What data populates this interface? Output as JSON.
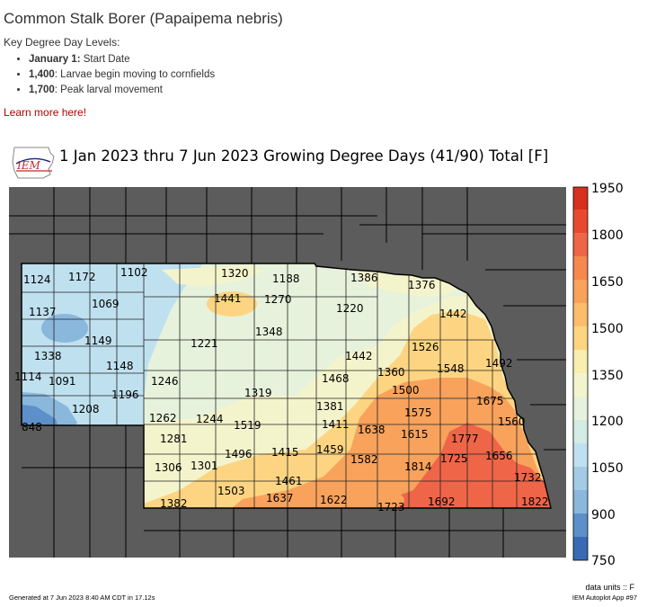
{
  "header": {
    "title": "Common Stalk Borer (Papaipema nebris)",
    "subtitle": "Key Degree Day Levels:",
    "levels": [
      {
        "value": "January 1:",
        "text": " Start Date",
        "bold": true
      },
      {
        "value": "1,400",
        "text": ": Larvae begin moving to cornfields",
        "bold": true
      },
      {
        "value": "1,700",
        "text": ": Peak larval movement",
        "bold": true
      }
    ],
    "learn_more": "Learn more here!"
  },
  "map": {
    "title": "1 Jan 2023 thru 7 Jun 2023 Growing Degree Days (41/90) Total [F]",
    "logo_text": "IEM",
    "units_label": "data units :: F",
    "colorbar": {
      "ticks": [
        "1950",
        "1800",
        "1650",
        "1500",
        "1350",
        "1200",
        "1050",
        "900",
        "750"
      ],
      "colors": [
        "#d7301f",
        "#ef6548",
        "#f9a25b",
        "#fdd582",
        "#f4f4cc",
        "#e6f2db",
        "#bfe0ef",
        "#8ab7dc",
        "#5d8fc9",
        "#3a6ab3"
      ]
    },
    "station_labels": [
      {
        "v": "1124"
      },
      {
        "v": "1172"
      },
      {
        "v": "1102"
      },
      {
        "v": "1320"
      },
      {
        "v": "1188"
      },
      {
        "v": "1386"
      },
      {
        "v": "1376"
      },
      {
        "v": "1441"
      },
      {
        "v": "1270"
      },
      {
        "v": "1137"
      },
      {
        "v": "1069"
      },
      {
        "v": "1220"
      },
      {
        "v": "1442"
      },
      {
        "v": "1348"
      },
      {
        "v": "1149"
      },
      {
        "v": "1221"
      },
      {
        "v": "1526"
      },
      {
        "v": "1338"
      },
      {
        "v": "1442"
      },
      {
        "v": "1148"
      },
      {
        "v": "1492"
      },
      {
        "v": "1548"
      },
      {
        "v": "1468"
      },
      {
        "v": "1360"
      },
      {
        "v": "1114"
      },
      {
        "v": "1091"
      },
      {
        "v": "1246"
      },
      {
        "v": "1500"
      },
      {
        "v": "1196"
      },
      {
        "v": "1319"
      },
      {
        "v": "1675"
      },
      {
        "v": "1208"
      },
      {
        "v": "1381"
      },
      {
        "v": "1575"
      },
      {
        "v": "1262"
      },
      {
        "v": "1244"
      },
      {
        "v": "1519"
      },
      {
        "v": "1411"
      },
      {
        "v": "1638"
      },
      {
        "v": "1560"
      },
      {
        "v": "848"
      },
      {
        "v": "1615"
      },
      {
        "v": "1777"
      },
      {
        "v": "1281"
      },
      {
        "v": "1496"
      },
      {
        "v": "1415"
      },
      {
        "v": "1459"
      },
      {
        "v": "1582"
      },
      {
        "v": "1725"
      },
      {
        "v": "1656"
      },
      {
        "v": "1306"
      },
      {
        "v": "1301"
      },
      {
        "v": "1814"
      },
      {
        "v": "1732"
      },
      {
        "v": "1461"
      },
      {
        "v": "1503"
      },
      {
        "v": "1637"
      },
      {
        "v": "1622"
      },
      {
        "v": "1692"
      },
      {
        "v": "1822"
      },
      {
        "v": "1382"
      },
      {
        "v": "1723"
      }
    ]
  },
  "footer": {
    "generated": "Generated at 7 Jun 2023 8:40 AM CDT in 17.12s",
    "app": "IEM Autoplot App #97"
  }
}
